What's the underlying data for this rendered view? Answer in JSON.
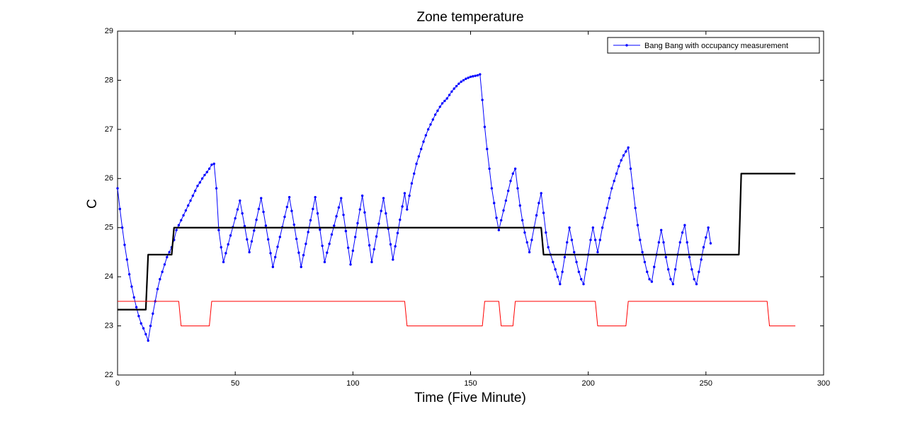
{
  "chart_data": {
    "type": "line",
    "title": "Zone temperature",
    "xlabel": "Time (Five Minute)",
    "ylabel": "C",
    "xlim": [
      0,
      300
    ],
    "xticks": [
      0,
      50,
      100,
      150,
      200,
      250,
      300
    ],
    "ylim": [
      22,
      29
    ],
    "yticks": [
      22,
      23,
      24,
      25,
      26,
      27,
      28,
      29
    ],
    "legend": "northeast",
    "series": [
      {
        "name": "Bang Bang with occupancy measurement",
        "color": "#0000ff",
        "marker": "dot",
        "x": [
          0,
          1,
          2,
          3,
          4,
          5,
          6,
          7,
          8,
          9,
          10,
          11,
          12,
          13,
          14,
          15,
          16,
          17,
          18,
          19,
          20,
          21,
          22,
          23,
          24,
          25,
          26,
          27,
          28,
          29,
          30,
          31,
          32,
          33,
          34,
          35,
          36,
          37,
          38,
          39,
          40,
          41,
          42,
          43,
          44,
          45,
          46,
          47,
          48,
          49,
          50,
          51,
          52,
          53,
          54,
          55,
          56,
          57,
          58,
          59,
          60,
          61,
          62,
          63,
          64,
          65,
          66,
          67,
          68,
          69,
          70,
          71,
          72,
          73,
          74,
          75,
          76,
          77,
          78,
          79,
          80,
          81,
          82,
          83,
          84,
          85,
          86,
          87,
          88,
          89,
          90,
          91,
          92,
          93,
          94,
          95,
          96,
          97,
          98,
          99,
          100,
          101,
          102,
          103,
          104,
          105,
          106,
          107,
          108,
          109,
          110,
          111,
          112,
          113,
          114,
          115,
          116,
          117,
          118,
          119,
          120,
          121,
          122,
          123,
          124,
          125,
          126,
          127,
          128,
          129,
          130,
          131,
          132,
          133,
          134,
          135,
          136,
          137,
          138,
          139,
          140,
          141,
          142,
          143,
          144,
          145,
          146,
          147,
          148,
          149,
          150,
          151,
          152,
          153,
          154,
          155,
          156,
          157,
          158,
          159,
          160,
          161,
          162,
          163,
          164,
          165,
          166,
          167,
          168,
          169,
          170,
          171,
          172,
          173,
          174,
          175,
          176,
          177,
          178,
          179,
          180,
          181,
          182,
          183,
          184,
          185,
          186,
          187,
          188,
          189,
          190,
          191,
          192,
          193,
          194,
          195,
          196,
          197,
          198,
          199,
          200,
          201,
          202,
          203,
          204,
          205,
          206,
          207,
          208,
          209,
          210,
          211,
          212,
          213,
          214,
          215,
          216,
          217,
          218,
          219,
          220,
          221,
          222,
          223,
          224,
          225,
          226,
          227,
          228,
          229,
          230,
          231,
          232,
          233,
          234,
          235,
          236,
          237,
          238,
          239,
          240,
          241,
          242,
          243,
          244,
          245,
          246,
          247,
          248,
          249,
          250,
          251,
          252
        ],
        "values": [
          25.8,
          25.38,
          25.0,
          24.65,
          24.35,
          24.05,
          23.8,
          23.58,
          23.38,
          23.2,
          23.05,
          22.95,
          22.83,
          22.7,
          23.0,
          23.25,
          23.5,
          23.75,
          23.95,
          24.1,
          24.25,
          24.4,
          24.5,
          24.6,
          24.75,
          24.95,
          25.05,
          25.15,
          25.25,
          25.35,
          25.45,
          25.55,
          25.65,
          25.75,
          25.85,
          25.92,
          26.0,
          26.07,
          26.13,
          26.2,
          26.28,
          26.3,
          25.8,
          24.95,
          24.6,
          24.3,
          24.48,
          24.66,
          24.84,
          25.01,
          25.19,
          25.37,
          25.55,
          25.29,
          25.03,
          24.76,
          24.5,
          24.72,
          24.94,
          25.16,
          25.38,
          25.6,
          25.32,
          25.04,
          24.76,
          24.48,
          24.2,
          24.4,
          24.61,
          24.81,
          25.01,
          25.22,
          25.42,
          25.62,
          25.34,
          25.06,
          24.77,
          24.49,
          24.2,
          24.44,
          24.67,
          24.91,
          25.15,
          25.38,
          25.62,
          25.29,
          24.96,
          24.63,
          24.3,
          24.49,
          24.67,
          24.86,
          25.04,
          25.23,
          25.41,
          25.6,
          25.26,
          24.93,
          24.59,
          24.25,
          24.53,
          24.81,
          25.09,
          25.37,
          25.65,
          25.31,
          24.98,
          24.64,
          24.3,
          24.56,
          24.82,
          25.08,
          25.34,
          25.6,
          25.29,
          24.98,
          24.66,
          24.35,
          24.62,
          24.89,
          25.16,
          25.43,
          25.7,
          25.37,
          25.65,
          25.9,
          26.1,
          26.3,
          26.45,
          26.6,
          26.75,
          26.88,
          27.0,
          27.1,
          27.2,
          27.3,
          27.38,
          27.46,
          27.53,
          27.58,
          27.63,
          27.7,
          27.77,
          27.83,
          27.88,
          27.93,
          27.97,
          28.0,
          28.03,
          28.05,
          28.07,
          28.08,
          28.09,
          28.1,
          28.12,
          27.6,
          27.05,
          26.6,
          26.2,
          25.8,
          25.5,
          25.2,
          24.95,
          25.15,
          25.35,
          25.55,
          25.75,
          25.95,
          26.1,
          26.2,
          25.8,
          25.45,
          25.15,
          24.9,
          24.7,
          24.5,
          24.75,
          25.0,
          25.25,
          25.5,
          25.7,
          25.3,
          24.9,
          24.6,
          24.45,
          24.3,
          24.15,
          24.0,
          23.85,
          24.1,
          24.4,
          24.7,
          25.0,
          24.75,
          24.5,
          24.3,
          24.1,
          23.95,
          23.85,
          24.15,
          24.45,
          24.75,
          25.0,
          24.75,
          24.5,
          24.75,
          25.0,
          25.2,
          25.4,
          25.6,
          25.8,
          25.95,
          26.1,
          26.25,
          26.37,
          26.47,
          26.55,
          26.63,
          26.2,
          25.8,
          25.4,
          25.05,
          24.75,
          24.5,
          24.3,
          24.1,
          23.95,
          23.9,
          24.2,
          24.45,
          24.7,
          24.95,
          24.7,
          24.4,
          24.15,
          23.95,
          23.85,
          24.15,
          24.45,
          24.7,
          24.9,
          25.05,
          24.7,
          24.4,
          24.15,
          23.95,
          23.85,
          24.1,
          24.35,
          24.6,
          24.8,
          25.0,
          24.68
        ]
      },
      {
        "color": "#000000",
        "x": [
          0,
          12,
          13,
          23,
          24,
          180,
          181,
          264,
          265,
          288
        ],
        "values": [
          23.33,
          23.33,
          24.45,
          24.45,
          25.0,
          25.0,
          24.45,
          24.45,
          26.1,
          26.1
        ]
      },
      {
        "color": "#ff0000",
        "x": [
          0,
          26,
          27,
          39,
          40,
          122,
          123,
          155,
          156,
          162,
          163,
          168,
          169,
          203,
          204,
          216,
          217,
          276,
          277,
          288
        ],
        "values": [
          23.5,
          23.5,
          23.0,
          23.0,
          23.5,
          23.5,
          23.0,
          23.0,
          23.5,
          23.5,
          23.0,
          23.0,
          23.5,
          23.5,
          23.0,
          23.0,
          23.5,
          23.5,
          23.0,
          23.0
        ]
      }
    ]
  }
}
